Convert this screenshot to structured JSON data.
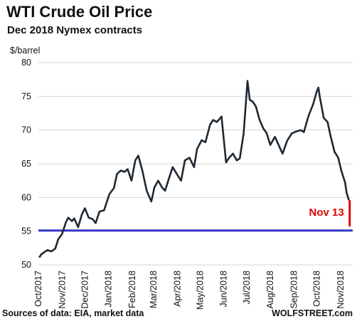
{
  "header": {
    "title": "WTI Crude  Oil Price",
    "subtitle": "Dec 2018 Nymex contracts"
  },
  "footer": {
    "source": "Sources of data: EIA, market data",
    "brand": "WOLFSTREET.com"
  },
  "chart_data": {
    "type": "line",
    "ylabel": "$/barrel",
    "ylim": [
      50,
      80
    ],
    "y_ticks": [
      50,
      55,
      60,
      65,
      70,
      75,
      80
    ],
    "x_ticks": [
      "Oct/2017",
      "Nov/2017",
      "Dec/2017",
      "Jan/2018",
      "Feb/2018",
      "Mar/2018",
      "Apr/2018",
      "May/2018",
      "Jun/2018",
      "Jul/2018",
      "Aug/2018",
      "Sep/2018",
      "Oct/2018",
      "Nov/2018"
    ],
    "grid": "horizontal",
    "colors": {
      "line": "#1f2933",
      "reference": "#3535c8",
      "highlight": "#e00000",
      "grid": "#d6d6d6"
    },
    "x": [
      "2017-10-02",
      "2017-10-05",
      "2017-10-10",
      "2017-10-13",
      "2017-10-18",
      "2017-10-23",
      "2017-10-27",
      "2017-11-01",
      "2017-11-06",
      "2017-11-09",
      "2017-11-14",
      "2017-11-17",
      "2017-11-22",
      "2017-11-27",
      "2017-12-01",
      "2017-12-06",
      "2017-12-11",
      "2017-12-15",
      "2017-12-20",
      "2017-12-26",
      "2018-01-02",
      "2018-01-08",
      "2018-01-12",
      "2018-01-17",
      "2018-01-22",
      "2018-01-26",
      "2018-01-31",
      "2018-02-05",
      "2018-02-09",
      "2018-02-14",
      "2018-02-20",
      "2018-02-26",
      "2018-03-02",
      "2018-03-07",
      "2018-03-12",
      "2018-03-16",
      "2018-03-21",
      "2018-03-26",
      "2018-04-02",
      "2018-04-06",
      "2018-04-11",
      "2018-04-17",
      "2018-04-23",
      "2018-04-27",
      "2018-05-03",
      "2018-05-08",
      "2018-05-14",
      "2018-05-18",
      "2018-05-23",
      "2018-05-29",
      "2018-06-04",
      "2018-06-08",
      "2018-06-13",
      "2018-06-18",
      "2018-06-22",
      "2018-06-27",
      "2018-07-02",
      "2018-07-05",
      "2018-07-09",
      "2018-07-13",
      "2018-07-18",
      "2018-07-23",
      "2018-07-27",
      "2018-08-01",
      "2018-08-07",
      "2018-08-13",
      "2018-08-17",
      "2018-08-23",
      "2018-08-29",
      "2018-09-04",
      "2018-09-10",
      "2018-09-14",
      "2018-09-20",
      "2018-09-26",
      "2018-10-01",
      "2018-10-03",
      "2018-10-05",
      "2018-10-10",
      "2018-10-15",
      "2018-10-19",
      "2018-10-24",
      "2018-10-29",
      "2018-11-02",
      "2018-11-07",
      "2018-11-09",
      "2018-11-12",
      "2018-11-13"
    ],
    "series": [
      {
        "values": [
          51.1,
          51.6,
          52.0,
          52.2,
          52.0,
          52.4,
          53.8,
          54.6,
          56.3,
          57.0,
          56.5,
          56.9,
          55.6,
          57.5,
          58.4,
          57.0,
          56.8,
          56.2,
          57.9,
          58.1,
          60.5,
          61.4,
          63.5,
          64.0,
          63.8,
          64.2,
          62.5,
          65.5,
          66.2,
          64.1,
          61.0,
          59.4,
          61.5,
          62.5,
          61.5,
          61.0,
          62.8,
          64.5,
          63.2,
          62.5,
          65.5,
          65.9,
          64.5,
          67.2,
          68.5,
          68.2,
          70.8,
          71.5,
          71.2,
          72.0,
          65.2,
          65.9,
          66.5,
          65.5,
          65.8,
          69.5,
          77.3,
          74.5,
          74.2,
          73.5,
          71.5,
          70.2,
          69.6,
          67.8,
          69.0,
          67.5,
          66.5,
          68.4,
          69.5,
          69.8,
          70.0,
          69.7,
          72.1,
          73.8,
          75.8,
          76.3,
          74.8,
          71.8,
          71.2,
          69.1,
          66.8,
          65.9,
          64.0,
          62.2,
          60.7,
          59.6,
          55.7
        ]
      }
    ],
    "reference_line": {
      "value": 55.1
    },
    "annotation": {
      "text": "Nov 13",
      "from": 59.6,
      "to": 55.7
    }
  }
}
